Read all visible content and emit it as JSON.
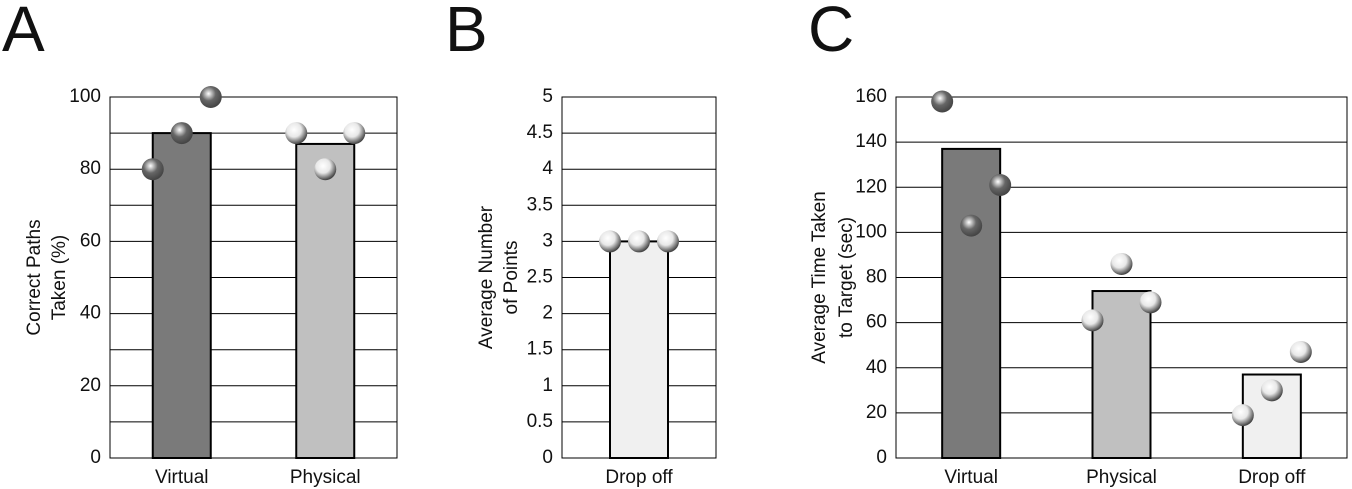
{
  "chart_data": [
    {
      "type": "bar",
      "panel_label": "A",
      "ylabel": [
        "Correct Paths",
        "Taken (%)"
      ],
      "categories": [
        "Virtual",
        "Physical"
      ],
      "values": [
        90,
        87
      ],
      "colors": [
        "#7a7a7a",
        "#c0c0c0"
      ],
      "points": [
        [
          80,
          90,
          100
        ],
        [
          90,
          80,
          90
        ]
      ],
      "point_colors": [
        "#666666",
        "#e8e8e8"
      ],
      "ylim": [
        0,
        100
      ],
      "yticks": [
        0,
        20,
        40,
        60,
        80,
        100
      ],
      "minor_gridlines": [
        10,
        30,
        50,
        70,
        90
      ],
      "grid": true
    },
    {
      "type": "bar",
      "panel_label": "B",
      "ylabel": [
        "Average Number",
        "of Points"
      ],
      "categories": [
        "Drop off"
      ],
      "values": [
        3
      ],
      "colors": [
        "#f0f0f0"
      ],
      "points": [
        [
          3,
          3,
          3
        ]
      ],
      "point_colors": [
        "#e8e8e8"
      ],
      "ylim": [
        0,
        5
      ],
      "yticks": [
        0,
        0.5,
        1,
        1.5,
        2,
        2.5,
        3,
        3.5,
        4,
        4.5,
        5
      ],
      "grid": true
    },
    {
      "type": "bar",
      "panel_label": "C",
      "ylabel": [
        "Average Time Taken",
        "to Target (sec)"
      ],
      "categories": [
        "Virtual",
        "Physical",
        "Drop off"
      ],
      "values": [
        137,
        74,
        37
      ],
      "colors": [
        "#7a7a7a",
        "#c0c0c0",
        "#f0f0f0"
      ],
      "points": [
        [
          158,
          103,
          121
        ],
        [
          61,
          86,
          69
        ],
        [
          19,
          30,
          47
        ]
      ],
      "point_colors": [
        "#666666",
        "#e8e8e8",
        "#e8e8e8"
      ],
      "ylim": [
        0,
        160
      ],
      "yticks": [
        0,
        20,
        40,
        60,
        80,
        100,
        120,
        140,
        160
      ],
      "grid": true
    }
  ]
}
